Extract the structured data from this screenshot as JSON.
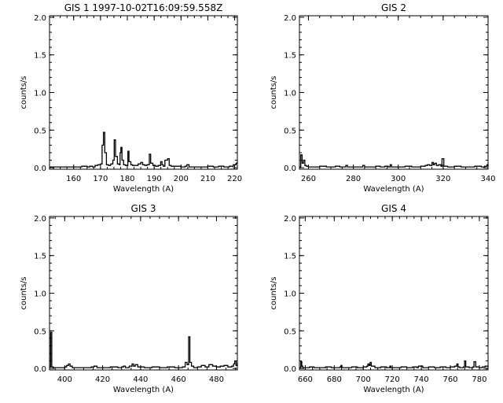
{
  "chart_data": [
    {
      "type": "line",
      "title": "GIS 1 1997-10-02T16:09:59.558Z",
      "xlabel": "Wavelength (A)",
      "ylabel": "counts/s",
      "xlim": [
        151,
        221
      ],
      "ylim": [
        -0.02,
        2.02
      ],
      "xticks": [
        160,
        170,
        180,
        190,
        200,
        210,
        220
      ],
      "yticks": [
        0.0,
        0.5,
        1.0,
        1.5,
        2.0
      ],
      "ytick_labels": [
        "0.0",
        "0.5",
        "1.0",
        "1.5",
        "2.0"
      ],
      "grid": false,
      "series": [
        {
          "x": [
            151,
            155,
            160,
            163,
            165,
            166,
            167,
            168,
            169,
            170,
            170.6,
            171.1,
            171.6,
            172.2,
            173,
            173.8,
            174.6,
            175.1,
            175.6,
            176.3,
            177,
            177.3,
            177.6,
            178,
            178.6,
            179.3,
            180.2,
            180.6,
            181.3,
            182,
            183,
            184,
            185,
            185.7,
            186.5,
            187.3,
            188.2,
            188.7,
            189.5,
            190.5,
            191.5,
            192.4,
            192.9,
            193.4,
            194,
            195,
            195.6,
            196.3,
            197,
            198.5,
            200,
            201.5,
            202.2,
            203,
            205,
            208,
            210,
            212,
            214,
            216,
            218,
            219.5,
            220.5,
            221
          ],
          "y": [
            0.01,
            0.01,
            0.01,
            0.02,
            0.01,
            0.02,
            0.01,
            0.03,
            0.04,
            0.05,
            0.3,
            0.47,
            0.2,
            0.04,
            0.03,
            0.05,
            0.1,
            0.37,
            0.15,
            0.05,
            0.04,
            0.2,
            0.27,
            0.1,
            0.04,
            0.03,
            0.22,
            0.08,
            0.04,
            0.03,
            0.03,
            0.05,
            0.07,
            0.04,
            0.03,
            0.04,
            0.18,
            0.06,
            0.03,
            0.02,
            0.03,
            0.08,
            0.04,
            0.02,
            0.1,
            0.12,
            0.03,
            0.02,
            0.02,
            0.02,
            0.01,
            0.02,
            0.04,
            0.01,
            0.01,
            0.01,
            0.02,
            0.01,
            0.02,
            0.01,
            0.02,
            0.04,
            0.06,
            0.08
          ]
        }
      ]
    },
    {
      "type": "line",
      "title": "GIS 2",
      "xlabel": "Wavelength (A)",
      "ylabel": "counts/s",
      "xlim": [
        256,
        340
      ],
      "ylim": [
        -0.02,
        2.02
      ],
      "xticks": [
        260,
        280,
        300,
        320,
        340
      ],
      "yticks": [
        0.0,
        0.5,
        1.0,
        1.5,
        2.0
      ],
      "ytick_labels": [
        "0.0",
        "0.5",
        "1.0",
        "1.5",
        "2.0"
      ],
      "grid": false,
      "series": [
        {
          "x": [
            256,
            256.6,
            257.2,
            257.8,
            258.4,
            259,
            260,
            262,
            265,
            268,
            270,
            272,
            274,
            276,
            276.7,
            277.4,
            280,
            283,
            284.2,
            285,
            287,
            290,
            292,
            294,
            295.5,
            296.4,
            297,
            300,
            303,
            306,
            308,
            310,
            312,
            313,
            314,
            315,
            315.6,
            316.2,
            317,
            318,
            319,
            319.5,
            320.3,
            322,
            325,
            328,
            331,
            334,
            337,
            338.5,
            339.5,
            340
          ],
          "y": [
            0.01,
            0.17,
            0.06,
            0.1,
            0.03,
            0.02,
            0.01,
            0.01,
            0.02,
            0.01,
            0.01,
            0.02,
            0.01,
            0.01,
            0.03,
            0.01,
            0.01,
            0.01,
            0.03,
            0.01,
            0.01,
            0.02,
            0.01,
            0.02,
            0.01,
            0.04,
            0.01,
            0.01,
            0.02,
            0.01,
            0.01,
            0.02,
            0.03,
            0.04,
            0.03,
            0.07,
            0.04,
            0.06,
            0.03,
            0.04,
            0.02,
            0.12,
            0.02,
            0.01,
            0.02,
            0.01,
            0.01,
            0.02,
            0.01,
            0.02,
            0.04,
            0.02
          ]
        }
      ]
    },
    {
      "type": "line",
      "title": "GIS 3",
      "xlabel": "Wavelength (A)",
      "ylabel": "counts/s",
      "xlim": [
        392,
        491
      ],
      "ylim": [
        -0.02,
        2.02
      ],
      "xticks": [
        400,
        420,
        440,
        460,
        480
      ],
      "yticks": [
        0.0,
        0.5,
        1.0,
        1.5,
        2.0
      ],
      "ytick_labels": [
        "0.0",
        "0.5",
        "1.0",
        "1.5",
        "2.0"
      ],
      "grid": false,
      "series": [
        {
          "x": [
            392,
            392.6,
            393.2,
            394,
            396,
            398,
            400,
            401,
            402,
            402.8,
            404,
            406,
            410,
            414,
            415.5,
            417,
            420,
            424,
            428,
            430,
            431,
            432,
            434,
            435.5,
            436.3,
            437.2,
            438.5,
            442,
            446,
            450,
            454,
            458,
            462,
            463.5,
            464.5,
            465.3,
            466,
            466.8,
            468,
            470,
            472,
            474,
            476,
            478,
            480,
            482,
            484,
            486,
            488,
            489,
            489.6,
            490.3,
            491
          ],
          "y": [
            0.02,
            0.48,
            0.02,
            0.01,
            0.01,
            0.01,
            0.02,
            0.04,
            0.06,
            0.03,
            0.01,
            0.01,
            0.01,
            0.02,
            0.03,
            0.01,
            0.01,
            0.02,
            0.01,
            0.02,
            0.03,
            0.01,
            0.03,
            0.06,
            0.03,
            0.05,
            0.02,
            0.01,
            0.02,
            0.01,
            0.02,
            0.01,
            0.02,
            0.08,
            0.05,
            0.42,
            0.08,
            0.03,
            0.01,
            0.02,
            0.04,
            0.02,
            0.05,
            0.03,
            0.02,
            0.03,
            0.04,
            0.02,
            0.03,
            0.06,
            0.1,
            0.04,
            0.08
          ]
        }
      ]
    },
    {
      "type": "line",
      "title": "GIS 4",
      "xlabel": "Wavelength (A)",
      "ylabel": "counts/s",
      "xlim": [
        656,
        786
      ],
      "ylim": [
        -0.02,
        2.02
      ],
      "xticks": [
        660,
        680,
        700,
        720,
        740,
        760,
        780
      ],
      "yticks": [
        0.0,
        0.5,
        1.0,
        1.5,
        2.0
      ],
      "ytick_labels": [
        "0.0",
        "0.5",
        "1.0",
        "1.5",
        "2.0"
      ],
      "grid": false,
      "series": [
        {
          "x": [
            656,
            657,
            657.6,
            658.3,
            660,
            663,
            666,
            670,
            674,
            678,
            682,
            684,
            684.6,
            685.3,
            688,
            692,
            696,
            700,
            702.5,
            703.2,
            704,
            704.7,
            705.5,
            708,
            712,
            716,
            718.3,
            719,
            722,
            726,
            730,
            734,
            737,
            738,
            741,
            745,
            749,
            753,
            757,
            760,
            763,
            764.5,
            765.3,
            766.5,
            769,
            769.8,
            770.6,
            773,
            775.5,
            776.3,
            777.5,
            780,
            782,
            784,
            786
          ],
          "y": [
            0.01,
            0.09,
            0.03,
            0.01,
            0.01,
            0.02,
            0.01,
            0.01,
            0.02,
            0.01,
            0.01,
            0.02,
            0.04,
            0.01,
            0.01,
            0.02,
            0.01,
            0.02,
            0.03,
            0.06,
            0.04,
            0.08,
            0.03,
            0.01,
            0.02,
            0.01,
            0.03,
            0.01,
            0.01,
            0.02,
            0.01,
            0.02,
            0.01,
            0.03,
            0.01,
            0.02,
            0.01,
            0.02,
            0.01,
            0.02,
            0.03,
            0.06,
            0.02,
            0.01,
            0.02,
            0.1,
            0.02,
            0.01,
            0.02,
            0.09,
            0.02,
            0.01,
            0.02,
            0.03,
            0.02
          ]
        }
      ]
    }
  ]
}
